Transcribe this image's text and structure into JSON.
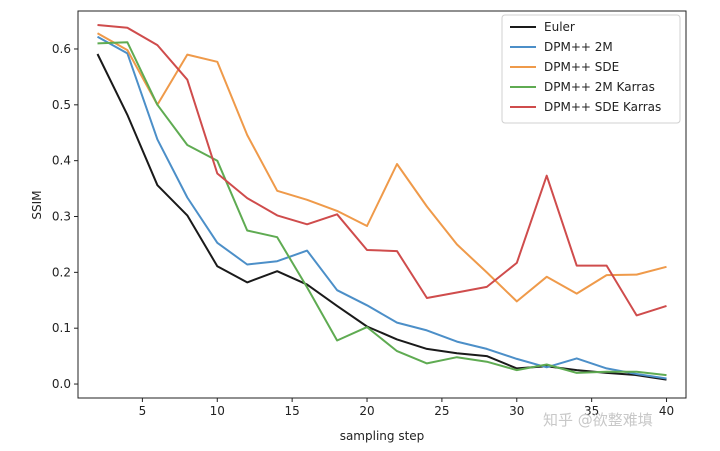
{
  "chart_data": {
    "type": "line",
    "title": "",
    "xlabel": "sampling step",
    "ylabel": "SSIM",
    "xlim": [
      0.7,
      41.3
    ],
    "ylim": [
      -0.025,
      0.668
    ],
    "xticks": [
      5,
      10,
      15,
      20,
      25,
      30,
      35,
      40
    ],
    "yticks": [
      0.0,
      0.1,
      0.2,
      0.3,
      0.4,
      0.5,
      0.6
    ],
    "x": [
      2,
      4,
      6,
      8,
      10,
      12,
      14,
      16,
      18,
      20,
      22,
      24,
      26,
      28,
      30,
      32,
      34,
      36,
      38,
      40
    ],
    "grid": false,
    "legend_position": "top-right",
    "series": [
      {
        "name": "Euler",
        "color": "#1a1a1a",
        "values": [
          0.591,
          0.482,
          0.356,
          0.302,
          0.211,
          0.182,
          0.202,
          0.178,
          0.14,
          0.103,
          0.08,
          0.063,
          0.055,
          0.05,
          0.028,
          0.032,
          0.025,
          0.02,
          0.016,
          0.008
        ]
      },
      {
        "name": "DPM++ 2M",
        "color": "#4c8fc8",
        "values": [
          0.622,
          0.592,
          0.438,
          0.334,
          0.253,
          0.214,
          0.22,
          0.239,
          0.168,
          0.141,
          0.11,
          0.096,
          0.076,
          0.063,
          0.045,
          0.03,
          0.046,
          0.028,
          0.018,
          0.01
        ]
      },
      {
        "name": "DPM++ SDE",
        "color": "#ef9a4a",
        "values": [
          0.628,
          0.598,
          0.5,
          0.59,
          0.577,
          0.446,
          0.346,
          0.33,
          0.31,
          0.283,
          0.394,
          0.318,
          0.25,
          0.2,
          0.148,
          0.192,
          0.162,
          0.195,
          0.196,
          0.21
        ]
      },
      {
        "name": "DPM++ 2M Karras",
        "color": "#5fab52",
        "values": [
          0.61,
          0.612,
          0.5,
          0.428,
          0.4,
          0.275,
          0.263,
          0.173,
          0.078,
          0.102,
          0.059,
          0.037,
          0.048,
          0.04,
          0.025,
          0.035,
          0.02,
          0.022,
          0.022,
          0.016
        ]
      },
      {
        "name": "DPM++ SDE Karras",
        "color": "#cf4c4c",
        "values": [
          0.643,
          0.638,
          0.607,
          0.545,
          0.377,
          0.333,
          0.302,
          0.286,
          0.304,
          0.24,
          0.238,
          0.154,
          0.164,
          0.174,
          0.217,
          0.373,
          0.212,
          0.212,
          0.123,
          0.14
        ]
      }
    ]
  },
  "watermark": {
    "text": "知乎 @欲整难填"
  }
}
